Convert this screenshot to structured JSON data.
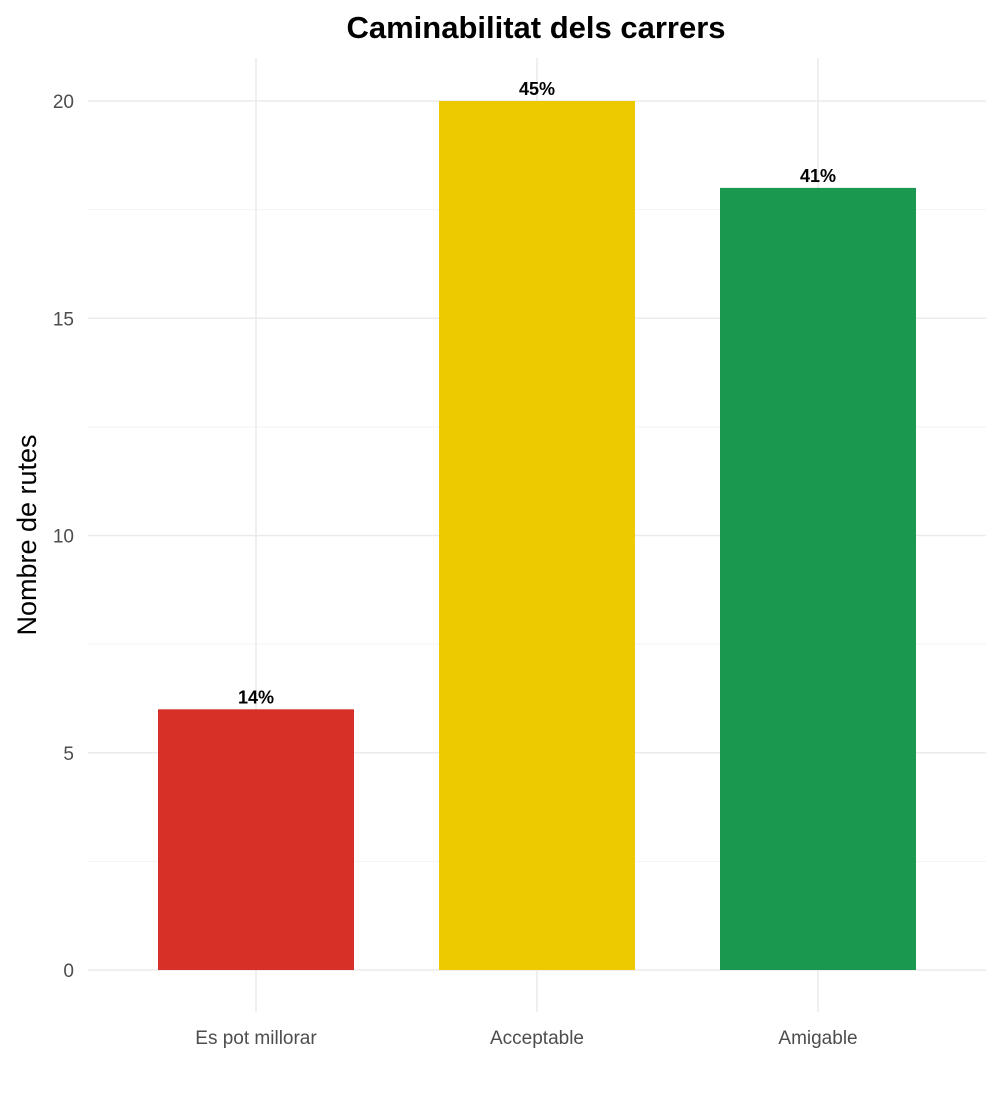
{
  "chart_data": {
    "type": "bar",
    "title": "Caminabilitat dels carrers",
    "xlabel": "",
    "ylabel": "Nombre de rutes",
    "categories": [
      "Es pot millorar",
      "Acceptable",
      "Amigable"
    ],
    "values": [
      6,
      20,
      18
    ],
    "data_labels": [
      "14%",
      "45%",
      "41%"
    ],
    "colors": [
      "#d73027",
      "#edc900",
      "#1a9850"
    ],
    "ylim": [
      0,
      21
    ],
    "yticks": [
      0,
      5,
      10,
      15,
      20
    ],
    "grid": true,
    "legend": "none"
  }
}
